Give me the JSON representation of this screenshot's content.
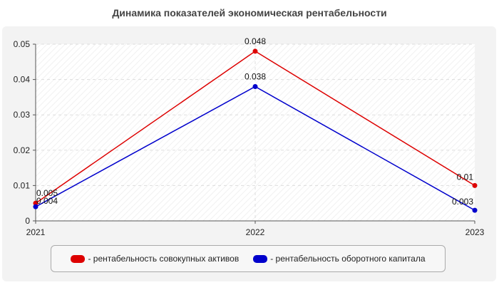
{
  "chart_data": {
    "type": "line",
    "title": "Динамика показателей экономическая рентабельности",
    "x": [
      "2021",
      "2022",
      "2023"
    ],
    "ylim": [
      0,
      0.05
    ],
    "yticks": [
      "0",
      "0.01",
      "0.02",
      "0.03",
      "0.04",
      "0.05"
    ],
    "grid": true,
    "legend_position": "bottom",
    "series": [
      {
        "name": "- рентабельность совокупных активов",
        "values": [
          0.005,
          0.048,
          0.01
        ],
        "labels": [
          "0.005",
          "0.048",
          "0.01"
        ],
        "color": "#dd0000"
      },
      {
        "name": "- рентабельность оборотного капитала",
        "values": [
          0.004,
          0.038,
          0.003
        ],
        "labels": [
          "0.004",
          "0.038",
          "0.003"
        ],
        "color": "#0000cc"
      }
    ]
  }
}
